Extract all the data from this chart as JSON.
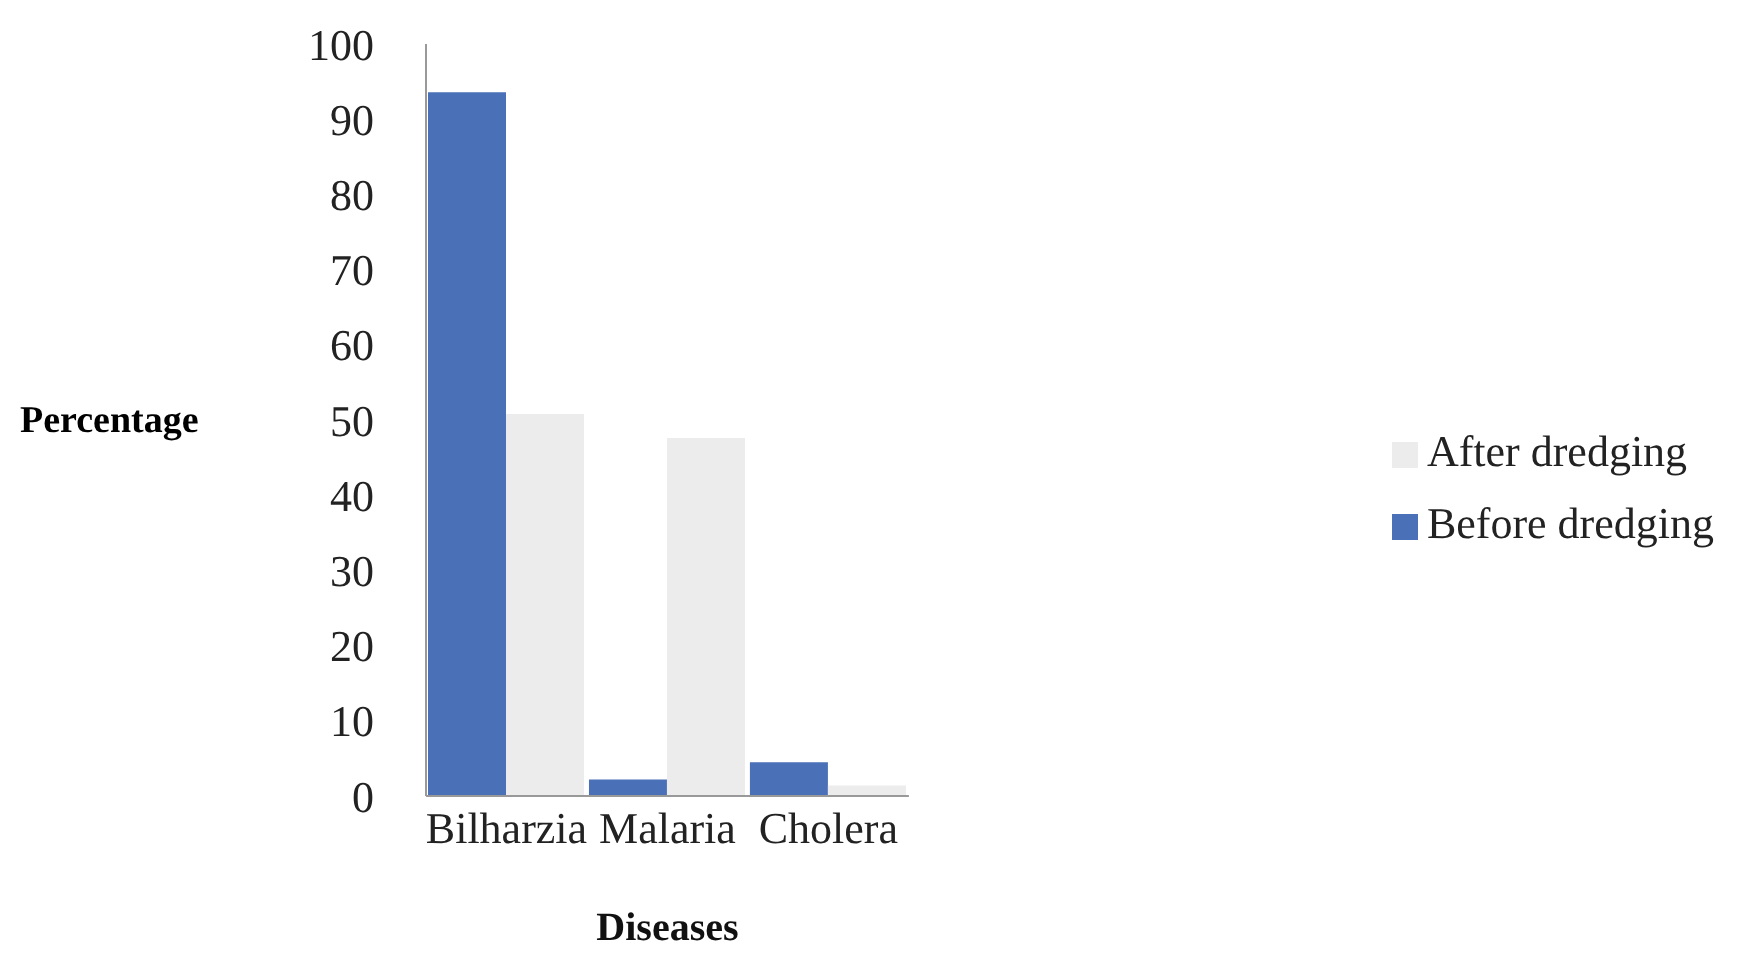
{
  "chart_data": {
    "type": "bar",
    "xlabel": "Diseases",
    "ylabel": "Percentage",
    "categories": [
      "Bilharzia",
      "Malaria",
      "Cholera"
    ],
    "series": [
      {
        "name": "Before dredging",
        "color": "#4a70b7",
        "values": [
          93.6,
          2.2,
          4.5
        ]
      },
      {
        "name": "After dredging",
        "color": "#ececec",
        "values": [
          50.8,
          47.6,
          1.4
        ]
      }
    ],
    "ylim": [
      0,
      100
    ],
    "yticks": [
      0,
      10,
      20,
      30,
      40,
      50,
      60,
      70,
      80,
      90,
      100
    ],
    "grid": false,
    "legend": "right"
  }
}
